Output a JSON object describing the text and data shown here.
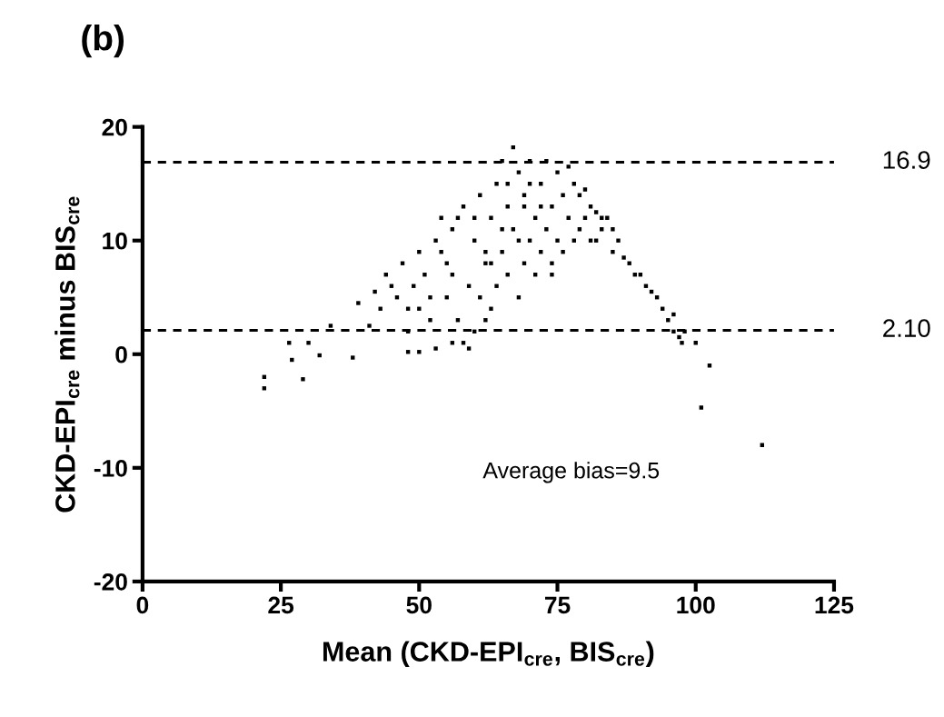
{
  "chart_data": {
    "type": "scatter",
    "title": "(b)",
    "xlabel": "Mean (CKD-EPI$_{cre}$, BIS$_{cre}$)",
    "ylabel": "CKD-EPI$_{cre}$ minus BIS$_{cre}$",
    "xlim": [
      0,
      125
    ],
    "ylim": [
      -20,
      20
    ],
    "xticks": [
      0,
      25,
      50,
      75,
      100,
      125
    ],
    "yticks": [
      -20,
      -10,
      0,
      10,
      20
    ],
    "grid": false,
    "marker": "square",
    "series": [
      {
        "color": "#000000",
        "x": [
          22,
          22,
          26.5,
          27,
          29,
          30,
          32,
          34,
          38,
          39,
          41,
          42,
          43,
          44,
          45,
          46,
          47,
          48,
          48,
          49,
          50,
          50,
          51,
          52,
          53,
          53,
          54,
          55,
          55,
          56,
          56,
          57,
          58,
          58,
          59,
          59,
          60,
          60,
          61,
          61,
          62,
          62,
          63,
          63,
          64,
          64,
          65,
          65,
          66,
          66,
          67,
          67,
          68,
          68,
          69,
          69,
          70,
          70,
          71,
          71,
          72,
          72,
          73,
          73,
          74,
          74,
          75,
          75,
          76,
          76,
          77,
          77,
          78,
          78,
          79,
          79,
          80,
          80,
          81,
          81,
          82,
          82,
          83,
          83,
          84,
          85,
          85,
          86,
          87,
          88,
          89,
          90,
          91,
          92,
          93,
          94,
          95,
          96,
          96,
          97,
          97.5,
          98,
          100,
          101,
          102.5,
          112,
          52,
          54,
          57,
          60,
          63,
          66,
          69,
          72,
          56,
          62,
          68,
          74,
          50,
          48,
          65,
          70
        ],
        "values": [
          -2,
          -3,
          1,
          -0.5,
          -2.2,
          1,
          -0.1,
          2.5,
          -0.3,
          4.5,
          2.5,
          5.5,
          4,
          7,
          6,
          5,
          8,
          2,
          0.2,
          6,
          9,
          0.2,
          7,
          3,
          10,
          0.5,
          12,
          5,
          8,
          1,
          11,
          3,
          13,
          1,
          6,
          0.5,
          10,
          2,
          14,
          5,
          8,
          3,
          12,
          4,
          15,
          6,
          17,
          9,
          7,
          13,
          18.2,
          11,
          5,
          16,
          8,
          14,
          17,
          10,
          7,
          12,
          15,
          9,
          17,
          11,
          8,
          13,
          16,
          10,
          14,
          9,
          16.5,
          12,
          15,
          10,
          14,
          11,
          14.5,
          12,
          13,
          10,
          12.5,
          10,
          12,
          11,
          12,
          11,
          9,
          10,
          8.5,
          8,
          7,
          7,
          6,
          5.5,
          5,
          4,
          3,
          3.5,
          2,
          1.5,
          1,
          2,
          1,
          -4.7,
          -1,
          -8,
          5,
          9,
          12,
          12,
          8,
          15,
          13,
          13,
          7,
          9,
          10,
          7,
          4,
          4,
          11,
          15
        ]
      }
    ],
    "ref_lines": [
      {
        "axis": "y",
        "value": 16.9,
        "label": "16.9",
        "line_style": "dashed",
        "color": "#000000"
      },
      {
        "axis": "y",
        "value": 2.1,
        "label": "2.10",
        "line_style": "dashed",
        "color": "#000000"
      }
    ],
    "annotations": [
      "Average bias=9.5"
    ]
  }
}
